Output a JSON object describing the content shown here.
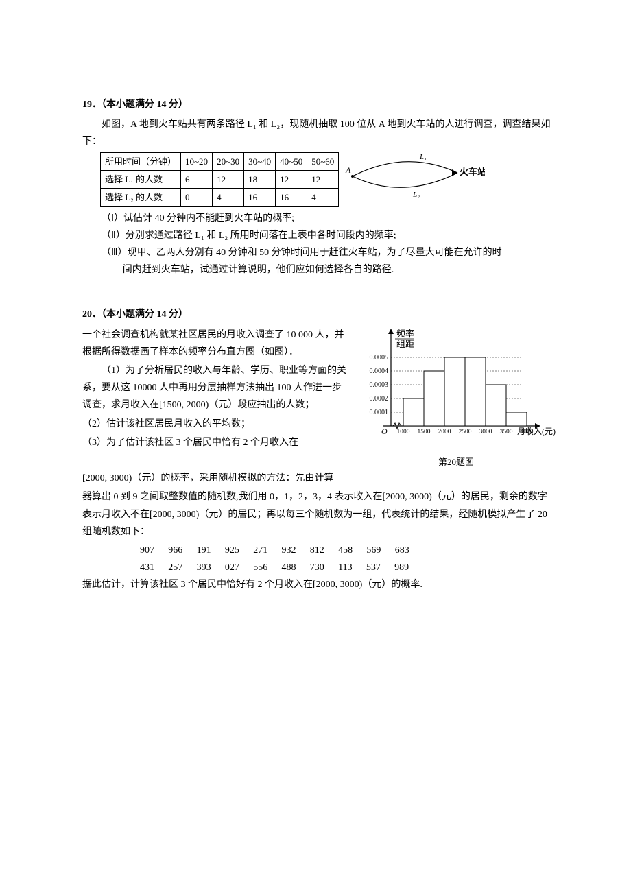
{
  "p19": {
    "title": "19．（本小题满分 14 分）",
    "intro1": "如图，A 地到火车站共有两条路径 L₁ 和 L₂，现随机抽取 100 位从 A 地到火车站的人进行调查，调查结果如下：",
    "table": {
      "headers": [
        "所用时间（分钟）",
        "10~20",
        "20~30",
        "30~40",
        "40~50",
        "50~60"
      ],
      "row1": [
        "选择 L₁ 的人数",
        "6",
        "12",
        "18",
        "12",
        "12"
      ],
      "row2": [
        "选择 L₂ 的人数",
        "0",
        "4",
        "16",
        "16",
        "4"
      ]
    },
    "diagram": {
      "labelA": "A",
      "labelStation": "火车站",
      "labelL1": "L₁",
      "labelL2": "L₂",
      "stroke": "#000000"
    },
    "sub1": "（Ⅰ）试估计 40 分钟内不能赶到火车站的概率;",
    "sub2": "（Ⅱ）分别求通过路径 L₁ 和 L₂ 所用时间落在上表中各时间段内的频率;",
    "sub3a": "（Ⅲ）现甲、乙两人分别有 40 分钟和 50 分钟时间用于赶往火车站，为了尽量大可能在允许的时",
    "sub3b": "间内赶到火车站，试通过计算说明，他们应如何选择各自的路径."
  },
  "p20": {
    "title": "20．（本小题满分 14 分）",
    "intro": "一个社会调查机构就某社区居民的月收入调查了 10 000 人，并根据所得数据画了样本的频率分布直方图（如图）．",
    "sub1": "（1）为了分析居民的收入与年龄、学历、职业等方面的关系，要从这 10000 人中再用分层抽样方法抽出 100 人作进一步调查，求月收入在[1500, 2000)（元）段应抽出的人数；",
    "sub2": "（2）估计该社区居民月收入的平均数；",
    "sub3a": "（3）为了估计该社区 3 个居民中恰有 2 个月收入在",
    "sub3b": "[2000, 3000)（元）的概率，采用随机模拟的方法：先由计算",
    "sub3c": "器算出 0 到 9 之间取整数值的随机数,我们用 0，1，2，3，4 表示收入在[2000, 3000)（元）的居民，剩余的数字表示月收入不在[2000, 3000)（元）的居民；再以每三个随机数为一组，代表统计的结果，经随机模拟产生了 20 组随机数如下：",
    "rand1": "907 966 191 925 271 932 812 458 569 683",
    "rand2": "431 257 393 027 556 488 730 113 537 989",
    "final": "据此估计，计算该社区 3 个居民中恰好有 2 个月收入在[2000, 3000)（元）的概率.",
    "chart": {
      "ylabel1": "频率",
      "ylabel2": "组距",
      "xlabel": "月收入(元)",
      "caption": "第20题图",
      "yTicks": [
        "0.0001",
        "0.0002",
        "0.0003",
        "0.0004",
        "0.0005"
      ],
      "yTickPositions": [
        20,
        40,
        60,
        80,
        100
      ],
      "xTicks": [
        "1000",
        "1500",
        "2000",
        "2500",
        "3000",
        "3500",
        "4000"
      ],
      "origin": "O",
      "bars": [
        {
          "x": 0,
          "h": 40
        },
        {
          "x": 1,
          "h": 80
        },
        {
          "x": 2,
          "h": 100
        },
        {
          "x": 3,
          "h": 100
        },
        {
          "x": 4,
          "h": 60
        },
        {
          "x": 5,
          "h": 20
        }
      ],
      "barWidth": 30,
      "plotHeight": 110,
      "colors": {
        "axis": "#000000",
        "grid": "#000000",
        "bar_stroke": "#000000",
        "bar_fill": "#ffffff",
        "bg": "#ffffff"
      },
      "font_size": 10
    }
  }
}
